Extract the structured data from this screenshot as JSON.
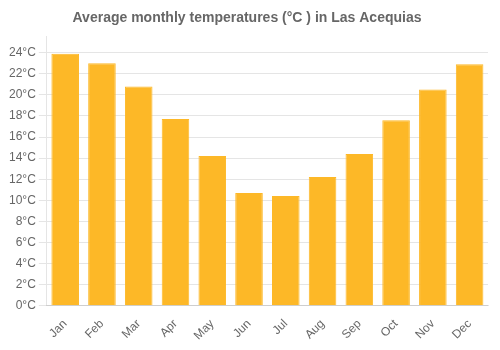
{
  "chart_data": {
    "type": "bar",
    "title": "Average monthly temperatures (°C ) in Las Acequias",
    "categories": [
      "Jan",
      "Feb",
      "Mar",
      "Apr",
      "May",
      "Jun",
      "Jul",
      "Aug",
      "Sep",
      "Oct",
      "Nov",
      "Dec"
    ],
    "values": [
      23.9,
      23.0,
      20.8,
      17.7,
      14.2,
      10.7,
      10.4,
      12.2,
      14.4,
      17.6,
      20.5,
      22.9
    ],
    "color": "#FDB827",
    "ylim": [
      0,
      25.5
    ],
    "yticks": [
      {
        "value": 0,
        "label": "0°C"
      },
      {
        "value": 2,
        "label": "2°C"
      },
      {
        "value": 4,
        "label": "4°C"
      },
      {
        "value": 6,
        "label": "6°C"
      },
      {
        "value": 8,
        "label": "8°C"
      },
      {
        "value": 10,
        "label": "10°C"
      },
      {
        "value": 12,
        "label": "12°C"
      },
      {
        "value": 14,
        "label": "14°C"
      },
      {
        "value": 16,
        "label": "16°C"
      },
      {
        "value": 18,
        "label": "18°C"
      },
      {
        "value": 20,
        "label": "20°C"
      },
      {
        "value": 22,
        "label": "22°C"
      },
      {
        "value": 24,
        "label": "24°C"
      }
    ],
    "grid": true
  }
}
